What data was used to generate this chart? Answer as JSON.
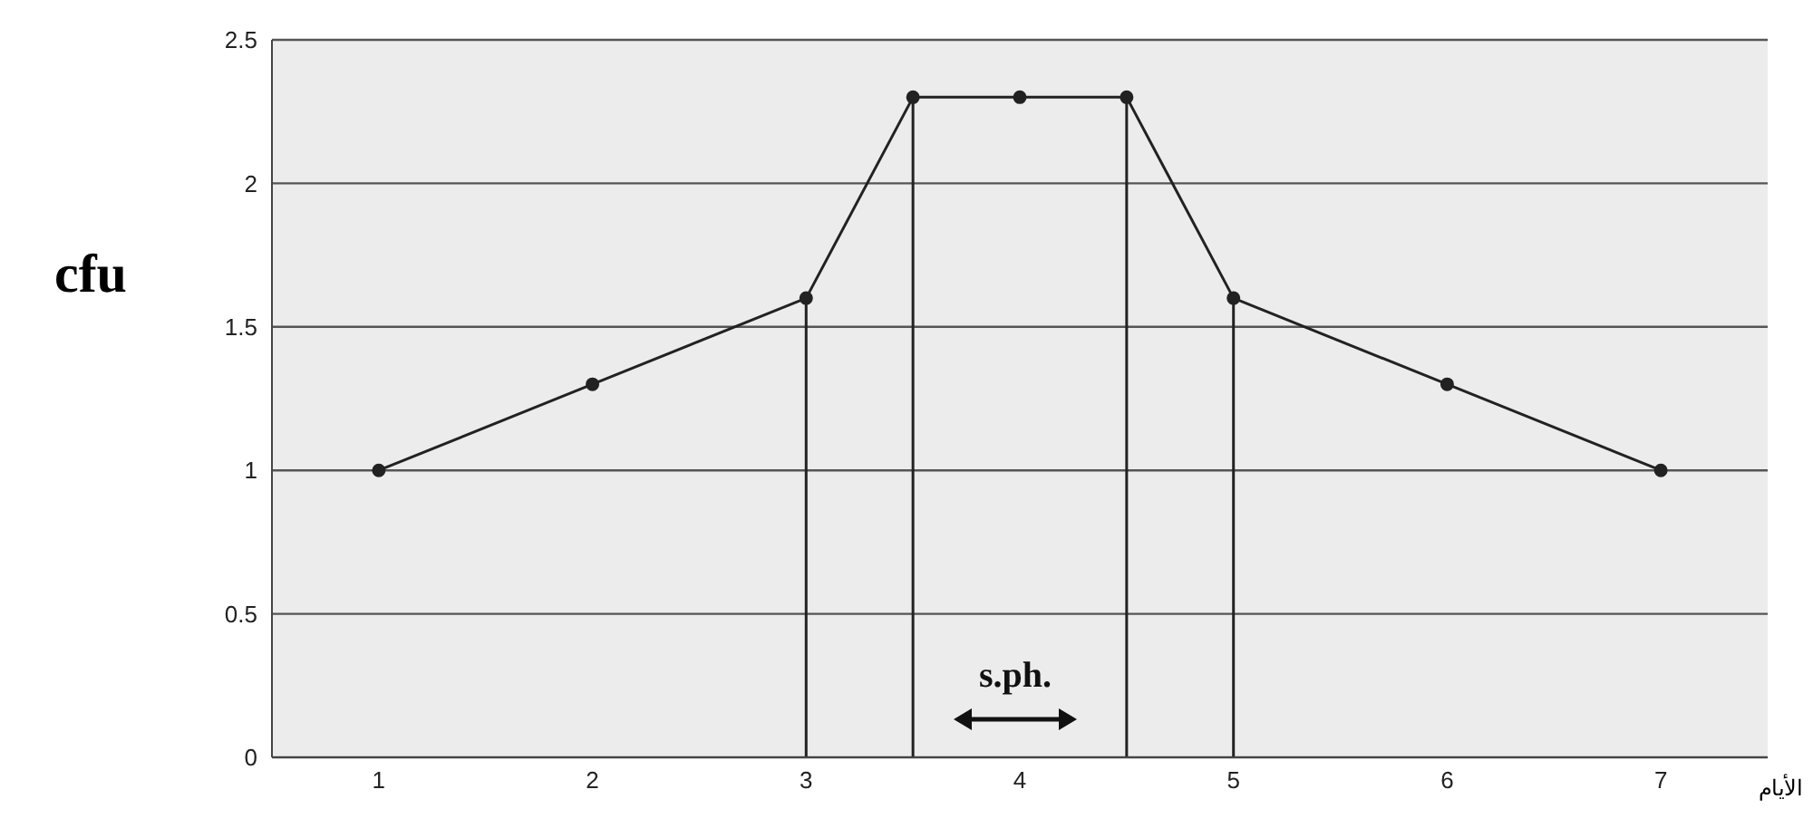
{
  "chart_data": {
    "type": "line",
    "ylabel": "cfu",
    "xlabel": "الأيام",
    "x": [
      1,
      2,
      3,
      3.5,
      4,
      4.5,
      5,
      6,
      7
    ],
    "series": [
      {
        "color": "#222222",
        "values": [
          1,
          1.3,
          1.6,
          2.3,
          2.3,
          2.3,
          1.6,
          1.3,
          1
        ]
      }
    ],
    "xlim": [
      0.5,
      7.5
    ],
    "xticks": [
      1,
      2,
      3,
      4,
      5,
      6,
      7
    ],
    "ylim": [
      0,
      2.5
    ],
    "yticks": [
      0,
      0.5,
      1,
      1.5,
      2,
      2.5
    ],
    "grid": "y",
    "marker": "circle",
    "line_style": "solid",
    "ref_lines": [
      {
        "axis": "x",
        "value": 3
      },
      {
        "axis": "x",
        "value": 3.5
      },
      {
        "axis": "x",
        "value": 4.5
      },
      {
        "axis": "x",
        "value": 5
      }
    ],
    "annotations": [
      "s.ph."
    ]
  }
}
